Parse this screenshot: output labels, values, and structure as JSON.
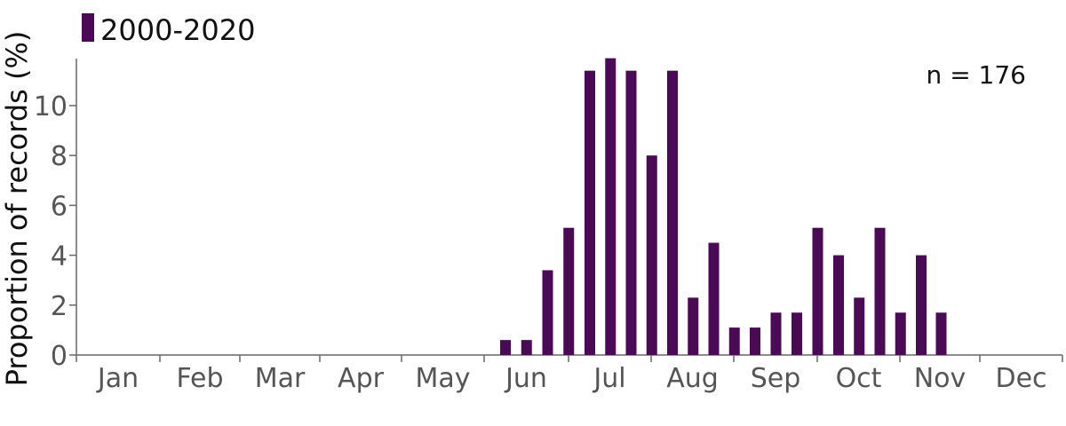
{
  "chart_data": {
    "type": "bar",
    "ylabel": "Proportion of records (%)",
    "xlabel": "",
    "ylim": [
      0,
      11.9
    ],
    "yticks": [
      0,
      2,
      4,
      6,
      8,
      10
    ],
    "months": [
      "Jan",
      "Feb",
      "Mar",
      "Apr",
      "May",
      "Jun",
      "Jul",
      "Aug",
      "Sep",
      "Oct",
      "Nov",
      "Dec"
    ],
    "series": [
      {
        "name": "2000-2020",
        "color": "#4a0a55",
        "x": [
          5.0,
          5.25,
          5.5,
          5.75,
          6.0,
          6.25,
          6.5,
          6.75,
          7.0,
          7.25,
          7.5,
          7.75,
          8.0,
          8.25,
          8.5,
          8.75,
          9.0,
          9.25,
          9.5,
          9.75,
          10.0
        ],
        "values": [
          0.6,
          0.6,
          3.4,
          5.1,
          11.4,
          11.9,
          11.4,
          8.0,
          11.4,
          2.3,
          4.5,
          1.1,
          1.1,
          1.7,
          1.7,
          5.1,
          4.0,
          2.3,
          5.1,
          1.7,
          4.0
        ]
      }
    ],
    "extra_bar": {
      "x": 10.25,
      "value": 1.7
    },
    "legend_position": "top-left",
    "annotation": "n = 176",
    "grid": false
  }
}
